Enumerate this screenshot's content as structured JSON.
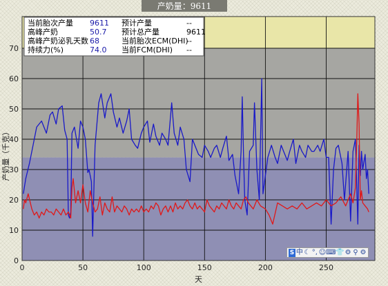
{
  "chart_data": {
    "type": "line",
    "title": "产奶量：9611",
    "xlabel": "天",
    "ylabel": "产奶量（千克）",
    "xlim": [
      0,
      290
    ],
    "ylim": [
      0,
      70
    ],
    "xticks": [
      0,
      50,
      100,
      150,
      200,
      250
    ],
    "yticks": [
      0,
      10,
      20,
      30,
      40,
      50,
      60,
      70
    ],
    "grid": true,
    "background_bands": [
      {
        "from": 0,
        "to": 34,
        "color": "#8f8fb4"
      },
      {
        "from": 34,
        "to": 70,
        "color": "#a6a6a2"
      },
      {
        "from": 70,
        "to": 75,
        "color": "#e9e6a8"
      }
    ],
    "series": [
      {
        "color": "#1818c8",
        "x": [
          1,
          3,
          6,
          9,
          12,
          16,
          20,
          23,
          25,
          28,
          30,
          33,
          35,
          37,
          38,
          39,
          40,
          41,
          43,
          46,
          48,
          50,
          52,
          54,
          55,
          57,
          58,
          60,
          63,
          65,
          68,
          70,
          73,
          75,
          78,
          80,
          83,
          86,
          88,
          90,
          93,
          95,
          98,
          100,
          103,
          105,
          108,
          110,
          113,
          115,
          118,
          120,
          123,
          125,
          128,
          130,
          133,
          135,
          138,
          140,
          143,
          145,
          148,
          150,
          153,
          155,
          158,
          160,
          163,
          165,
          168,
          170,
          173,
          175,
          178,
          180,
          181,
          182,
          183,
          185,
          187,
          190,
          191,
          193,
          195,
          197,
          198,
          200,
          202,
          205,
          208,
          210,
          213,
          215,
          218,
          220,
          223,
          225,
          228,
          230,
          233,
          235,
          238,
          240,
          243,
          245,
          248,
          250,
          252,
          254,
          256,
          258,
          260,
          263,
          265,
          268,
          270,
          272,
          274,
          276,
          277,
          278,
          279,
          280,
          282,
          283,
          284,
          285
        ],
        "values": [
          22,
          27,
          32,
          38,
          44,
          46,
          42,
          48,
          49,
          45,
          50,
          51,
          43,
          40,
          15,
          14,
          16,
          42,
          44,
          37,
          46,
          44,
          40,
          29,
          30,
          26,
          8,
          38,
          52,
          55,
          47,
          52,
          55,
          49,
          44,
          47,
          42,
          46,
          50,
          40,
          38,
          37,
          42,
          44,
          46,
          39,
          45,
          41,
          38,
          42,
          40,
          38,
          52,
          42,
          38,
          44,
          40,
          30,
          26,
          40,
          37,
          35,
          34,
          38,
          36,
          34,
          37,
          38,
          34,
          37,
          41,
          33,
          35,
          28,
          22,
          36,
          54,
          35,
          20,
          15,
          36,
          38,
          52,
          30,
          20,
          60,
          22,
          28,
          34,
          38,
          34,
          32,
          38,
          36,
          33,
          36,
          40,
          32,
          38,
          36,
          34,
          38,
          36,
          36,
          38,
          36,
          40,
          34,
          34,
          12,
          30,
          37,
          38,
          32,
          20,
          36,
          13,
          36,
          40,
          12,
          38,
          28,
          36,
          30,
          35,
          27,
          30,
          22
        ]
      },
      {
        "color": "#e01818",
        "x": [
          1,
          2,
          3,
          5,
          8,
          10,
          12,
          14,
          16,
          18,
          20,
          22,
          24,
          26,
          28,
          30,
          32,
          34,
          36,
          38,
          40,
          41,
          42,
          44,
          46,
          48,
          50,
          52,
          54,
          56,
          58,
          60,
          62,
          64,
          66,
          68,
          70,
          72,
          74,
          76,
          78,
          80,
          82,
          84,
          86,
          88,
          90,
          92,
          94,
          96,
          98,
          100,
          102,
          104,
          106,
          108,
          110,
          112,
          114,
          116,
          118,
          120,
          122,
          124,
          126,
          128,
          130,
          132,
          134,
          136,
          138,
          140,
          142,
          144,
          146,
          148,
          150,
          152,
          154,
          156,
          158,
          160,
          162,
          164,
          166,
          168,
          170,
          172,
          174,
          176,
          178,
          180,
          182,
          184,
          186,
          188,
          190,
          193,
          196,
          200,
          203,
          206,
          210,
          214,
          218,
          222,
          226,
          230,
          234,
          238,
          242,
          246,
          250,
          254,
          258,
          262,
          266,
          268,
          270,
          272,
          274,
          275,
          276,
          277,
          278,
          279,
          280,
          282,
          284,
          285
        ],
        "values": [
          17,
          20,
          19,
          22,
          17,
          15,
          16,
          14,
          16,
          15,
          17,
          16,
          16,
          15,
          17,
          16,
          15,
          17,
          15,
          16,
          14,
          24,
          27,
          19,
          23,
          19,
          25,
          19,
          16,
          23,
          19,
          16,
          17,
          21,
          15,
          19,
          17,
          16,
          21,
          16,
          18,
          17,
          16,
          18,
          17,
          15,
          17,
          16,
          17,
          16,
          18,
          16,
          17,
          16,
          18,
          17,
          19,
          18,
          15,
          17,
          18,
          16,
          18,
          16,
          19,
          17,
          18,
          17,
          19,
          20,
          18,
          17,
          19,
          17,
          18,
          17,
          16,
          20,
          18,
          17,
          16,
          18,
          17,
          19,
          18,
          17,
          20,
          18,
          17,
          19,
          18,
          17,
          20,
          21,
          19,
          18,
          17,
          20,
          18,
          17,
          15,
          12,
          19,
          18,
          17,
          18,
          17,
          19,
          17,
          18,
          19,
          18,
          20,
          18,
          19,
          21,
          18,
          20,
          22,
          19,
          24,
          38,
          55,
          45,
          20,
          23,
          19,
          18,
          17,
          16
        ]
      }
    ],
    "info_panel": [
      {
        "label": "当前胎次产量",
        "value": "9611"
      },
      {
        "label": "预计产量",
        "value": "--"
      },
      {
        "label": "高峰产奶",
        "value": "50.7"
      },
      {
        "label": "预计总产量",
        "value": "9611"
      },
      {
        "label": "高峰产奶泌乳天数",
        "value": "68"
      },
      {
        "label": "当前胎次ECM(DHI)",
        "value": "--"
      },
      {
        "label": "持续力(%)",
        "value": "74.0"
      },
      {
        "label": "当前FCM(DHI)",
        "value": "--"
      }
    ]
  },
  "toolbar": {
    "icons": [
      "app-logo-icon",
      "chinese-input-icon",
      "moon-icon",
      "comma-icon",
      "emoji-icon",
      "keyboard-icon",
      "clothing-icon",
      "skin-icon",
      "search-icon",
      "settings-icon"
    ],
    "glyphs": [
      "S",
      "中",
      "☾",
      "°,",
      "☺",
      "⌨",
      "👕",
      "⚙",
      "⚲",
      "⚙"
    ]
  }
}
